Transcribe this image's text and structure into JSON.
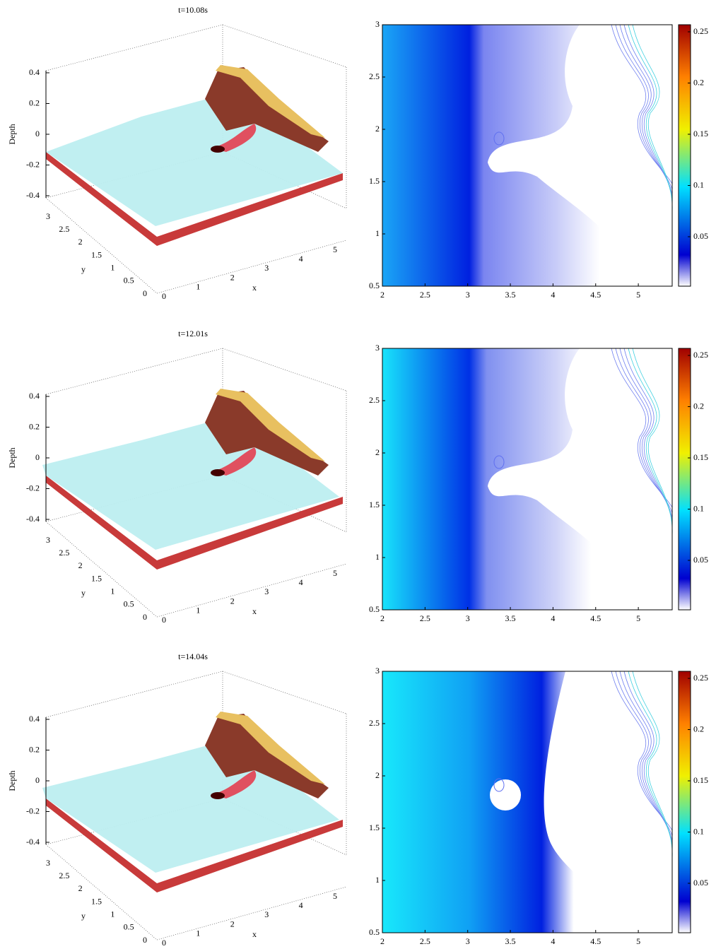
{
  "panels": [
    {
      "title": "t=10.08s",
      "surface": {
        "z_label": "Depth",
        "x_label": "x",
        "y_label": "y",
        "z_ticks": [
          0.4,
          0.2,
          0,
          -0.2,
          -0.4
        ],
        "x_ticks": [
          0,
          1,
          2,
          3,
          4,
          5
        ],
        "y_ticks": [
          3,
          2.5,
          2,
          1.5,
          1,
          0.5,
          0
        ]
      },
      "contour": {
        "x_ticks": [
          2,
          2.5,
          3,
          3.5,
          4,
          4.5,
          5
        ],
        "y_ticks": [
          0.5,
          1,
          1.5,
          2,
          2.5,
          3
        ],
        "colorbar_ticks": [
          0.05,
          0.1,
          0.15,
          0.2,
          0.25
        ]
      }
    },
    {
      "title": "t=12.01s",
      "surface": {
        "z_label": "Depth",
        "x_label": "x",
        "y_label": "y",
        "z_ticks": [
          0.4,
          0.2,
          0,
          -0.2,
          -0.4
        ],
        "x_ticks": [
          0,
          1,
          2,
          3,
          4,
          5
        ],
        "y_ticks": [
          3,
          2.5,
          2,
          1.5,
          1,
          0.5,
          0
        ]
      },
      "contour": {
        "x_ticks": [
          2,
          2.5,
          3,
          3.5,
          4,
          4.5,
          5
        ],
        "y_ticks": [
          0.5,
          1,
          1.5,
          2,
          2.5,
          3
        ],
        "colorbar_ticks": [
          0.05,
          0.1,
          0.15,
          0.2,
          0.25
        ]
      }
    },
    {
      "title": "t=14.04s",
      "surface": {
        "z_label": "Depth",
        "x_label": "x",
        "y_label": "y",
        "z_ticks": [
          0.4,
          0.2,
          0,
          -0.2,
          -0.4
        ],
        "x_ticks": [
          0,
          1,
          2,
          3,
          4,
          5
        ],
        "y_ticks": [
          3,
          2.5,
          2,
          1.5,
          1,
          0.5,
          0
        ]
      },
      "contour": {
        "x_ticks": [
          2,
          2.5,
          3,
          3.5,
          4,
          4.5,
          5
        ],
        "y_ticks": [
          0.5,
          1,
          1.5,
          2,
          2.5,
          3
        ],
        "colorbar_ticks": [
          0.05,
          0.1,
          0.15,
          0.2,
          0.25
        ]
      }
    }
  ]
}
